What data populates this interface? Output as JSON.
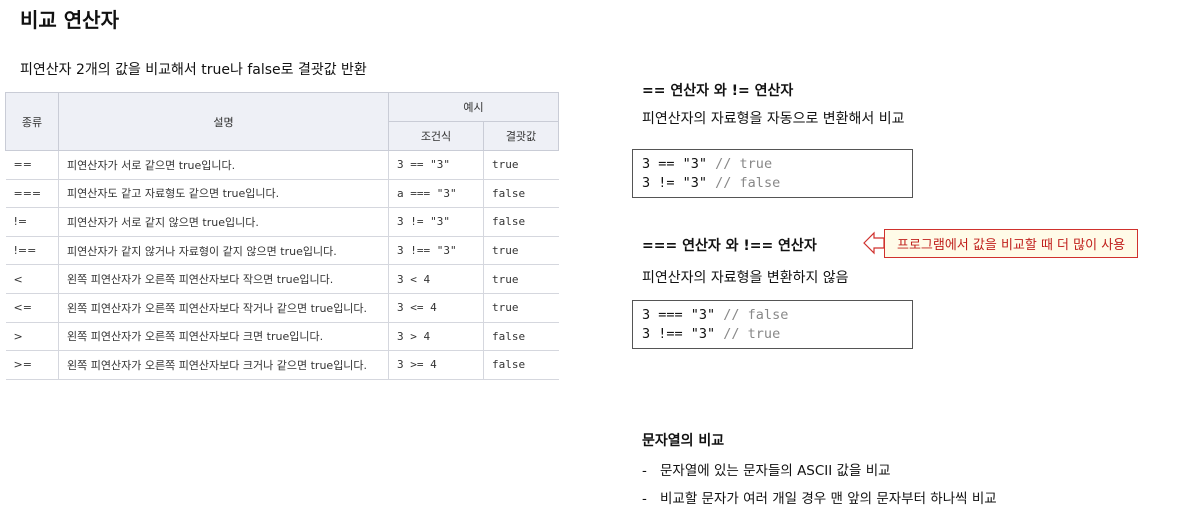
{
  "title": "비교 연산자",
  "subtitle": "피연산자 2개의 값을 비교해서 true나 false로 결괏값 반환",
  "table": {
    "headers": {
      "type": "종류",
      "description": "설명",
      "example": "예시",
      "condition": "조건식",
      "result": "결괏값"
    },
    "rows": [
      [
        "==",
        "피연산자가 서로 같으면 true입니다.",
        "3 == \"3\"",
        "true"
      ],
      [
        "===",
        "피연산자도 같고 자료형도 같으면 true입니다.",
        "a === \"3\"",
        "false"
      ],
      [
        "!=",
        "피연산자가 서로 같지 않으면 true입니다.",
        "3 != \"3\"",
        "false"
      ],
      [
        "!==",
        "피연산자가 같지 않거나 자료형이 같지 않으면 true입니다.",
        "3 !== \"3\"",
        "true"
      ],
      [
        "<",
        "왼쪽 피연산자가 오른쪽 피연산자보다 작으면 true입니다.",
        "3 < 4",
        "true"
      ],
      [
        "<=",
        "왼쪽 피연산자가 오른쪽 피연산자보다 작거나 같으면 true입니다.",
        "3 <= 4",
        "true"
      ],
      [
        ">",
        "왼쪽 피연산자가 오른쪽 피연산자보다 크면 true입니다.",
        "3 > 4",
        "false"
      ],
      [
        ">=",
        "왼쪽 피연산자가 오른쪽 피연산자보다 크거나 같으면 true입니다.",
        "3 >= 4",
        "false"
      ]
    ]
  },
  "sections": [
    {
      "heading": "== 연산자 와 != 연산자",
      "description": "피연산자의 자료형을 자동으로 변환해서 비교",
      "code": [
        {
          "code": "3 == \"3\"",
          "comment": "// true"
        },
        {
          "code": "3 != \"3\"",
          "comment": "// false"
        }
      ]
    },
    {
      "heading": "=== 연산자 와 !== 연산자",
      "callout": "프로그램에서 값을 비교할 때 더 많이 사용",
      "description": "피연산자의 자료형을 변환하지 않음",
      "code": [
        {
          "code": "3 === \"3\"",
          "comment": "// false"
        },
        {
          "code": "3 !== \"3\"",
          "comment": "// true"
        }
      ]
    },
    {
      "heading": "문자열의 비교",
      "bullets": [
        "문자열에 있는 문자들의 ASCII 값을 비교",
        "비교할 문자가 여러 개일 경우 맨 앞의 문자부터 하나씩 비교"
      ]
    }
  ]
}
